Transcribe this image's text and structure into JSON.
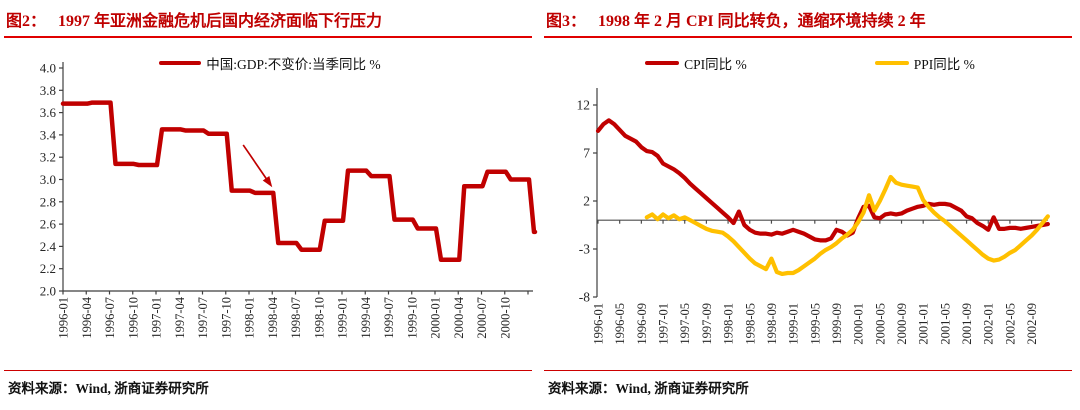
{
  "left_panel": {
    "figure_label": "图2：",
    "title": "1997 年亚洲金融危机后国内经济面临下行压力",
    "source": "资料来源：Wind, 浙商证券研究所",
    "legend": [
      {
        "label": "中国:GDP:不变价:当季同比 %",
        "color": "#c00000"
      }
    ]
  },
  "right_panel": {
    "figure_label": "图3：",
    "title": "1998 年 2 月 CPI 同比转负，通缩环境持续 2 年",
    "source": "资料来源：Wind, 浙商证券研究所",
    "legend": [
      {
        "label": "CPI同比 %",
        "color": "#c00000"
      },
      {
        "label": "PPI同比 %",
        "color": "#ffc000"
      }
    ]
  },
  "colors": {
    "title_red": "#bf0000",
    "rule_red": "#e00000",
    "line_dark_red": "#c00000",
    "line_gold": "#ffc000",
    "axis_gray": "#3f3f3f"
  },
  "chart_data": [
    {
      "type": "line",
      "interpolation": "step",
      "title": "1997 年亚洲金融危机后国内经济面临下行压力",
      "legend": [
        "中国:GDP:不变价:当季同比 %"
      ],
      "line_color": "#c00000",
      "ylim": [
        2.0,
        4.0
      ],
      "ytick_step": 0.2,
      "grid": false,
      "categories": [
        "1996-01",
        "1996-04",
        "1996-07",
        "1996-10",
        "1997-01",
        "1997-04",
        "1997-07",
        "1997-10",
        "1998-01",
        "1998-04",
        "1998-07",
        "1998-10",
        "1999-01",
        "1999-04",
        "1999-07",
        "1999-10",
        "2000-01",
        "2000-04",
        "2000-07",
        "2000-10"
      ],
      "values": [
        3.68,
        3.69,
        3.14,
        3.13,
        3.45,
        3.44,
        3.41,
        2.9,
        2.88,
        2.43,
        2.37,
        2.63,
        3.08,
        3.03,
        2.64,
        2.56,
        2.28,
        2.94,
        3.07,
        3.0
      ],
      "end_value": 2.53,
      "annotation_arrow": {
        "from_x": 7.75,
        "from_y": 3.31,
        "to_x": 9.0,
        "to_y": 2.93
      }
    },
    {
      "type": "line",
      "title": "1998 年 2 月 CPI 同比转负，通缩环境持续 2 年",
      "ylim": [
        -8,
        12
      ],
      "yticks": [
        12,
        7,
        2,
        -3,
        -8
      ],
      "zero_line": true,
      "grid": false,
      "months_per_tick": 4,
      "x_tick_labels": [
        "1996-01",
        "1996-05",
        "1996-09",
        "1997-01",
        "1997-05",
        "1997-09",
        "1998-01",
        "1998-05",
        "1998-09",
        "1999-01",
        "1999-05",
        "1999-09",
        "2000-01",
        "2000-05",
        "2000-09",
        "2001-01",
        "2001-05",
        "2001-09",
        "2002-01",
        "2002-05",
        "2002-09"
      ],
      "series": [
        {
          "name": "CPI同比 %",
          "color": "#c00000",
          "start_month": 0,
          "values": [
            9.3,
            10.0,
            10.4,
            10.0,
            9.4,
            8.8,
            8.5,
            8.2,
            7.6,
            7.2,
            7.1,
            6.7,
            5.9,
            5.6,
            5.3,
            4.9,
            4.4,
            3.8,
            3.3,
            2.8,
            2.3,
            1.8,
            1.3,
            0.8,
            0.3,
            -0.3,
            0.9,
            -0.5,
            -1.0,
            -1.3,
            -1.4,
            -1.4,
            -1.5,
            -1.3,
            -1.4,
            -1.2,
            -1.0,
            -1.2,
            -1.4,
            -1.7,
            -2.0,
            -2.1,
            -2.1,
            -1.9,
            -1.0,
            -1.2,
            -1.6,
            -1.3,
            0.2,
            1.4,
            1.5,
            0.3,
            0.2,
            0.6,
            0.7,
            0.6,
            0.7,
            1.0,
            1.2,
            1.4,
            1.5,
            1.7,
            1.6,
            1.7,
            1.7,
            1.6,
            1.3,
            1.0,
            0.4,
            0.2,
            -0.3,
            -0.6,
            -1.0,
            0.3,
            -0.9,
            -0.9,
            -0.8,
            -0.8,
            -0.9,
            -0.8,
            -0.7,
            -0.6,
            -0.5,
            -0.4
          ]
        },
        {
          "name": "PPI同比 %",
          "color": "#ffc000",
          "start_month": 9,
          "values": [
            0.3,
            0.6,
            0.1,
            0.6,
            0.2,
            0.5,
            0.1,
            0.3,
            0.0,
            -0.3,
            -0.6,
            -0.9,
            -1.1,
            -1.2,
            -1.3,
            -1.7,
            -2.2,
            -2.8,
            -3.4,
            -4.0,
            -4.5,
            -4.8,
            -5.1,
            -4.0,
            -5.4,
            -5.6,
            -5.5,
            -5.5,
            -5.2,
            -4.8,
            -4.4,
            -4.0,
            -3.5,
            -3.1,
            -2.8,
            -2.4,
            -1.9,
            -1.5,
            -1.0,
            -0.2,
            0.8,
            2.6,
            1.0,
            2.0,
            3.2,
            4.5,
            3.9,
            3.7,
            3.6,
            3.5,
            3.4,
            2.1,
            1.4,
            0.8,
            0.3,
            -0.1,
            -0.6,
            -1.1,
            -1.6,
            -2.1,
            -2.6,
            -3.1,
            -3.6,
            -4.0,
            -4.2,
            -4.1,
            -3.8,
            -3.4,
            -3.1,
            -2.6,
            -2.1,
            -1.6,
            -1.0,
            -0.3,
            0.4
          ]
        }
      ]
    }
  ]
}
